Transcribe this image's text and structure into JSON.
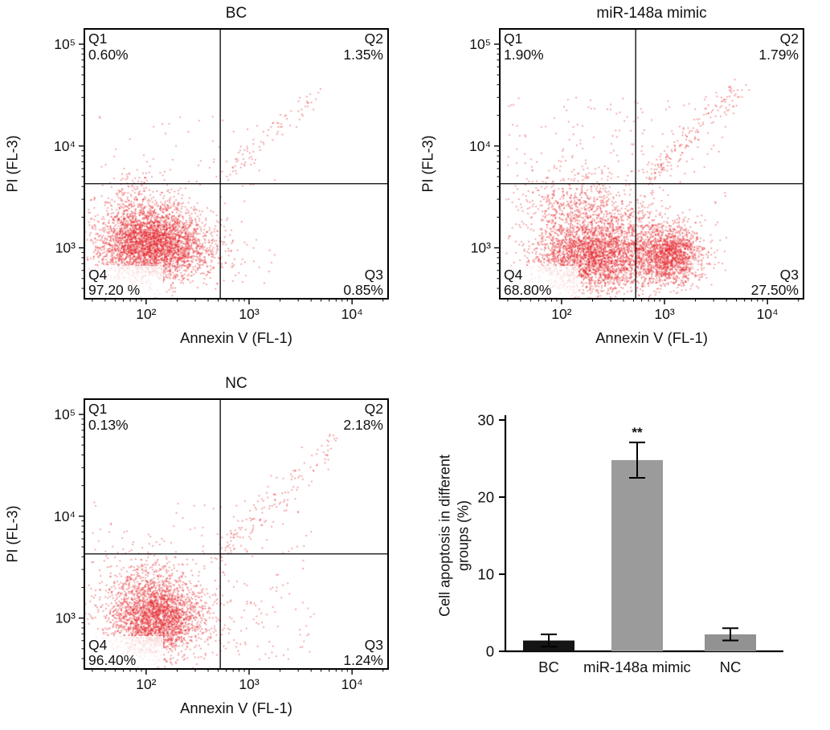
{
  "chart_data": [
    {
      "type": "scatter",
      "id": "bc",
      "title": "BC",
      "xlabel": "Annexin V (FL-1)",
      "ylabel": "PI (FL-3)",
      "xticks": [
        {
          "v": 2,
          "label": "10²"
        },
        {
          "v": 3,
          "label": "10³"
        },
        {
          "v": 4,
          "label": "10⁴"
        }
      ],
      "yticks": [
        {
          "v": 3,
          "label": "10³"
        },
        {
          "v": 4,
          "label": "10⁴"
        },
        {
          "v": 5,
          "label": "10⁵"
        }
      ],
      "xrange": [
        1.4,
        4.35
      ],
      "yrange": [
        2.5,
        5.15
      ],
      "quadrant_dividers": {
        "x": 2.72,
        "y": 3.63
      },
      "quadrants": [
        {
          "name": "Q1",
          "value": "0.60%"
        },
        {
          "name": "Q2",
          "value": "1.35%"
        },
        {
          "name": "Q3",
          "value": "0.85%"
        },
        {
          "name": "Q4",
          "value": "97.20 %"
        }
      ],
      "dot_color": "#e41f26",
      "seed": 7,
      "clusters": [
        {
          "cx": 2.05,
          "cy": 3.05,
          "sx": 0.26,
          "sy": 0.17,
          "n": 3200
        },
        {
          "cx": 1.95,
          "cy": 3.35,
          "sx": 0.22,
          "sy": 0.18,
          "n": 420
        },
        {
          "cx": 2.5,
          "cy": 2.95,
          "sx": 0.2,
          "sy": 0.15,
          "n": 180
        }
      ],
      "diag": {
        "x0": 2.78,
        "y0": 3.75,
        "x1": 3.7,
        "y1": 4.55,
        "jx": 0.05,
        "jy": 0.05,
        "n": 85
      },
      "noise": {
        "n": 110,
        "x": [
          1.45,
          3.3
        ],
        "y": [
          2.6,
          4.3
        ]
      }
    },
    {
      "type": "scatter",
      "id": "mimic",
      "title": "miR-148a mimic",
      "xlabel": "Annexin V (FL-1)",
      "ylabel": "PI (FL-3)",
      "xticks": [
        {
          "v": 2,
          "label": "10²"
        },
        {
          "v": 3,
          "label": "10³"
        },
        {
          "v": 4,
          "label": "10⁴"
        }
      ],
      "yticks": [
        {
          "v": 3,
          "label": "10³"
        },
        {
          "v": 4,
          "label": "10⁴"
        },
        {
          "v": 5,
          "label": "10⁵"
        }
      ],
      "xrange": [
        1.4,
        4.35
      ],
      "yrange": [
        2.5,
        5.15
      ],
      "quadrant_dividers": {
        "x": 2.72,
        "y": 3.63
      },
      "quadrants": [
        {
          "name": "Q1",
          "value": "1.90%"
        },
        {
          "name": "Q2",
          "value": "1.79%"
        },
        {
          "name": "Q3",
          "value": "27.50%"
        },
        {
          "name": "Q4",
          "value": "68.80%"
        }
      ],
      "dot_color": "#e41f26",
      "seed": 11,
      "clusters": [
        {
          "cx": 2.3,
          "cy": 2.93,
          "sx": 0.28,
          "sy": 0.18,
          "n": 2600
        },
        {
          "cx": 3.05,
          "cy": 2.93,
          "sx": 0.16,
          "sy": 0.14,
          "n": 1500
        },
        {
          "cx": 2.15,
          "cy": 3.4,
          "sx": 0.25,
          "sy": 0.22,
          "n": 600
        },
        {
          "cx": 2.7,
          "cy": 3.1,
          "sx": 0.25,
          "sy": 0.2,
          "n": 400
        }
      ],
      "diag": {
        "x0": 2.85,
        "y0": 3.7,
        "x1": 3.72,
        "y1": 4.6,
        "jx": 0.06,
        "jy": 0.06,
        "n": 170
      },
      "noise": {
        "n": 260,
        "x": [
          1.45,
          3.6
        ],
        "y": [
          2.6,
          4.5
        ]
      }
    },
    {
      "type": "scatter",
      "id": "nc",
      "title": "NC",
      "xlabel": "Annexin V (FL-1)",
      "ylabel": "PI (FL-3)",
      "xticks": [
        {
          "v": 2,
          "label": "10²"
        },
        {
          "v": 3,
          "label": "10³"
        },
        {
          "v": 4,
          "label": "10⁴"
        }
      ],
      "yticks": [
        {
          "v": 3,
          "label": "10³"
        },
        {
          "v": 4,
          "label": "10⁴"
        },
        {
          "v": 5,
          "label": "10⁵"
        }
      ],
      "xrange": [
        1.4,
        4.35
      ],
      "yrange": [
        2.5,
        5.15
      ],
      "quadrant_dividers": {
        "x": 2.72,
        "y": 3.63
      },
      "quadrants": [
        {
          "name": "Q1",
          "value": "0.13%"
        },
        {
          "name": "Q2",
          "value": "2.18%"
        },
        {
          "name": "Q3",
          "value": "1.24%"
        },
        {
          "name": "Q4",
          "value": "96.40%"
        }
      ],
      "dot_color": "#e41f26",
      "seed": 13,
      "clusters": [
        {
          "cx": 2.1,
          "cy": 3.0,
          "sx": 0.24,
          "sy": 0.18,
          "n": 2500
        },
        {
          "cx": 2.0,
          "cy": 3.35,
          "sx": 0.2,
          "sy": 0.18,
          "n": 350
        },
        {
          "cx": 3.0,
          "cy": 3.0,
          "sx": 0.3,
          "sy": 0.25,
          "n": 60
        }
      ],
      "diag": {
        "x0": 2.7,
        "y0": 3.6,
        "x1": 3.85,
        "y1": 4.8,
        "jx": 0.07,
        "jy": 0.08,
        "n": 150
      },
      "noise": {
        "n": 160,
        "x": [
          1.45,
          3.6
        ],
        "y": [
          2.6,
          4.2
        ]
      }
    },
    {
      "type": "bar",
      "categories": [
        "BC",
        "miR-148a mimic",
        "NC"
      ],
      "values": [
        1.4,
        24.8,
        2.2
      ],
      "errors": [
        0.8,
        2.3,
        0.8
      ],
      "bar_colors": [
        "#141414",
        "#9b9b9b",
        "#929292"
      ],
      "axis_color": "#000000",
      "ylabel": "Cell apoptosis in different groups (%)",
      "ylim": [
        0,
        30
      ],
      "yticks": [
        0,
        10,
        20,
        30
      ],
      "significance": {
        "index": 1,
        "text": "**"
      }
    }
  ]
}
